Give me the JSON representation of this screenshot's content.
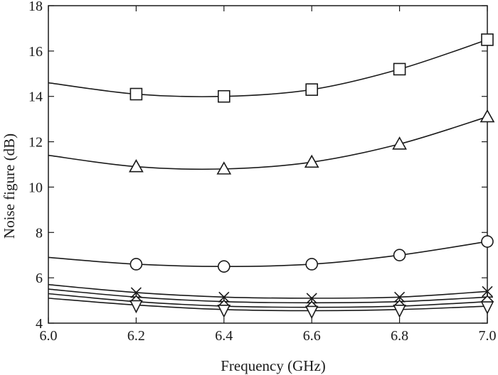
{
  "chart_data": {
    "type": "line",
    "title": "",
    "xlabel": "Frequency (GHz)",
    "ylabel": "Noise figure (dB)",
    "xlim": [
      6.0,
      7.0
    ],
    "ylim": [
      4,
      18
    ],
    "xticks": [
      "6.0",
      "6.2",
      "6.4",
      "6.6",
      "6.8",
      "7.0"
    ],
    "yticks": [
      "4",
      "6",
      "8",
      "10",
      "12",
      "14",
      "16",
      "18"
    ],
    "grid": false,
    "legend": "none",
    "x": [
      6.0,
      6.2,
      6.4,
      6.6,
      6.8,
      7.0
    ],
    "series": [
      {
        "marker": "square",
        "values": [
          14.6,
          14.1,
          14.0,
          14.3,
          15.2,
          16.5
        ]
      },
      {
        "marker": "triangle",
        "values": [
          11.4,
          10.9,
          10.8,
          11.1,
          11.9,
          13.1
        ]
      },
      {
        "marker": "circle",
        "values": [
          6.9,
          6.6,
          6.5,
          6.6,
          7.0,
          7.6
        ]
      },
      {
        "marker": "cross",
        "values": [
          5.7,
          5.35,
          5.15,
          5.1,
          5.15,
          5.4
        ]
      },
      {
        "marker": "plus",
        "values": [
          5.5,
          5.15,
          4.95,
          4.9,
          4.95,
          5.15
        ]
      },
      {
        "marker": "diamond",
        "values": [
          5.3,
          4.95,
          4.75,
          4.7,
          4.75,
          4.95
        ]
      },
      {
        "marker": "triangle-down",
        "values": [
          5.1,
          4.8,
          4.6,
          4.55,
          4.6,
          4.75
        ]
      }
    ]
  }
}
